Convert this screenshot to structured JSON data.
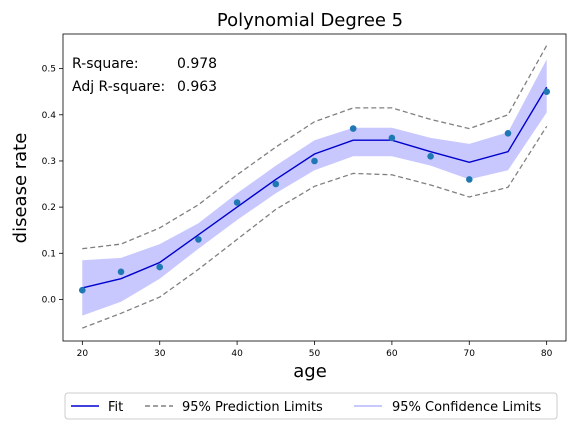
{
  "chart_data": {
    "type": "line",
    "title": "Polynomial Degree 5",
    "xlabel": "age",
    "ylabel": "disease rate",
    "xlim": [
      17.5,
      82.5
    ],
    "ylim": [
      -0.09,
      0.575
    ],
    "x_ticks": [
      20,
      30,
      40,
      50,
      60,
      70,
      80
    ],
    "y_ticks": [
      0.0,
      0.1,
      0.2,
      0.3,
      0.4,
      0.5
    ],
    "x_tick_labels": [
      "20",
      "30",
      "40",
      "50",
      "60",
      "70",
      "80"
    ],
    "y_tick_labels": [
      "0.0",
      "0.1",
      "0.2",
      "0.3",
      "0.4",
      "0.5"
    ],
    "x": [
      20,
      25,
      30,
      35,
      40,
      45,
      50,
      55,
      60,
      65,
      70,
      75,
      80
    ],
    "observed": [
      0.02,
      0.06,
      0.07,
      0.13,
      0.21,
      0.25,
      0.3,
      0.37,
      0.35,
      0.31,
      0.26,
      0.36,
      0.45
    ],
    "series": [
      {
        "name": "Fit",
        "values": [
          0.025,
          0.045,
          0.08,
          0.14,
          0.2,
          0.26,
          0.315,
          0.345,
          0.345,
          0.32,
          0.297,
          0.32,
          0.46
        ],
        "color": "#0000cd"
      },
      {
        "name": "95% Prediction Limits",
        "upper": [
          0.11,
          0.12,
          0.155,
          0.205,
          0.27,
          0.33,
          0.385,
          0.415,
          0.415,
          0.39,
          0.37,
          0.4,
          0.55
        ],
        "lower": [
          -0.062,
          -0.03,
          0.005,
          0.065,
          0.13,
          0.195,
          0.245,
          0.273,
          0.27,
          0.248,
          0.222,
          0.243,
          0.375
        ],
        "color": "#808080"
      },
      {
        "name": "95% Confidence Limits",
        "upper": [
          0.085,
          0.09,
          0.12,
          0.165,
          0.23,
          0.29,
          0.345,
          0.372,
          0.372,
          0.35,
          0.337,
          0.362,
          0.52
        ],
        "lower": [
          -0.035,
          -0.005,
          0.045,
          0.11,
          0.172,
          0.23,
          0.28,
          0.31,
          0.31,
          0.29,
          0.26,
          0.28,
          0.405
        ],
        "color": "#c8c8ff"
      }
    ],
    "marker_color": "#1f77b4",
    "annotations": {
      "r_square_label": "R-square:",
      "r_square_value": "0.978",
      "adj_r_square_label": "Adj R-square:",
      "adj_r_square_value": "0.963"
    },
    "legend_position": "bottom"
  }
}
